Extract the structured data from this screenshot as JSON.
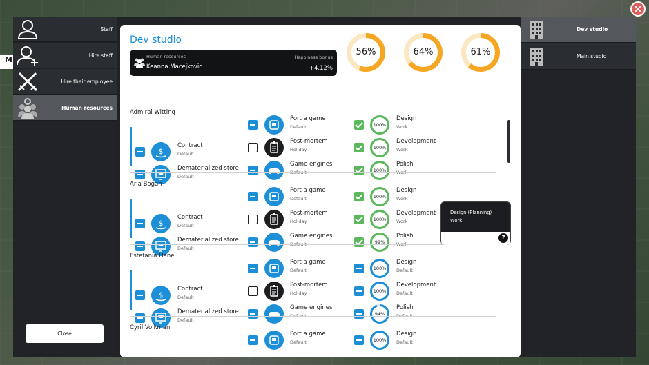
{
  "sidebar": {
    "items": [
      {
        "label": "Staff",
        "icon": "person-icon",
        "active": false
      },
      {
        "label": "Hire staff",
        "icon": "person-add-icon",
        "active": false
      },
      {
        "label": "Hire their employee",
        "icon": "crossed-swords-icon",
        "active": false
      },
      {
        "label": "Human resources",
        "icon": "group-gear-icon",
        "active": true
      }
    ],
    "close_label": "Close"
  },
  "studio": {
    "title": "Dev studio",
    "hr": {
      "label": "Human resources",
      "name": "Keanna Macejkovic",
      "bonus_label": "Happiness bonus",
      "bonus_value": "+4.12%"
    },
    "stats": [
      {
        "label": "56%",
        "value": 56
      },
      {
        "label": "64%",
        "value": 64
      },
      {
        "label": "61%",
        "value": 61
      }
    ]
  },
  "colors": {
    "accent": "#1c8fd6",
    "ring_orange": "#f5a623",
    "ring_track": "#fbe8c3",
    "check_green": "#5cb85c",
    "close_red": "#e35a5a"
  },
  "employees": [
    {
      "name": "Admiral Witting",
      "rows": [
        {
          "a": {
            "label": "",
            "sub": "",
            "cb": ""
          },
          "b": {
            "label": "Port a game",
            "sub": "Default",
            "cb": "minus",
            "icon": "console-icon"
          },
          "c": {
            "label": "Design",
            "sub": "Work",
            "cb": "check",
            "pct": "100%",
            "val": 100
          }
        },
        {
          "a": {
            "label": "Contract",
            "sub": "Default",
            "cb": "minus",
            "icon": "money-hand-icon"
          },
          "b": {
            "label": "Post-mortem",
            "sub": "Holiday",
            "cb": "empty",
            "icon": "clipboard-icon",
            "dark": true
          },
          "c": {
            "label": "Development",
            "sub": "Work",
            "cb": "check",
            "pct": "100%",
            "val": 100
          }
        },
        {
          "a": {
            "label": "Dematerialized store",
            "sub": "Default",
            "cb": "minus",
            "icon": "cart-screen-icon"
          },
          "b": {
            "label": "Game engines",
            "sub": "Default",
            "cb": "minus",
            "icon": "gamepad-icon"
          },
          "c": {
            "label": "Polish",
            "sub": "Work",
            "cb": "check",
            "pct": "100%",
            "val": 100
          }
        }
      ]
    },
    {
      "name": "Arla Bogan",
      "rows": [
        {
          "a": {
            "label": "",
            "sub": "",
            "cb": ""
          },
          "b": {
            "label": "Port a game",
            "sub": "Default",
            "cb": "minus",
            "icon": "console-icon"
          },
          "c": {
            "label": "Design",
            "sub": "Work",
            "cb": "check",
            "pct": "100%",
            "val": 100
          }
        },
        {
          "a": {
            "label": "Contract",
            "sub": "Default",
            "cb": "minus",
            "icon": "money-hand-icon"
          },
          "b": {
            "label": "Post-mortem",
            "sub": "Holiday",
            "cb": "empty",
            "icon": "clipboard-icon",
            "dark": true
          },
          "c": {
            "label": "Development",
            "sub": "Work",
            "cb": "check",
            "pct": "100%",
            "val": 100
          }
        },
        {
          "a": {
            "label": "Dematerialized store",
            "sub": "Default",
            "cb": "minus",
            "icon": "cart-screen-icon"
          },
          "b": {
            "label": "Game engines",
            "sub": "Default",
            "cb": "minus",
            "icon": "gamepad-icon"
          },
          "c": {
            "label": "Polish",
            "sub": "Work",
            "cb": "check",
            "pct": "99%",
            "val": 99
          }
        }
      ]
    },
    {
      "name": "Estefania Hane",
      "rows": [
        {
          "a": {
            "label": "",
            "sub": "",
            "cb": ""
          },
          "b": {
            "label": "Port a game",
            "sub": "Default",
            "cb": "minus",
            "icon": "console-icon"
          },
          "c": {
            "label": "Design",
            "sub": "Default",
            "cb": "minus",
            "pct": "100%",
            "val": 100
          }
        },
        {
          "a": {
            "label": "Contract",
            "sub": "Default",
            "cb": "minus",
            "icon": "money-hand-icon"
          },
          "b": {
            "label": "Post-mortem",
            "sub": "Holiday",
            "cb": "empty",
            "icon": "clipboard-icon",
            "dark": true
          },
          "c": {
            "label": "Development",
            "sub": "Default",
            "cb": "minus",
            "pct": "100%",
            "val": 100
          }
        },
        {
          "a": {
            "label": "Dematerialized store",
            "sub": "Default",
            "cb": "minus",
            "icon": "cart-screen-icon"
          },
          "b": {
            "label": "Game engines",
            "sub": "Default",
            "cb": "minus",
            "icon": "gamepad-icon"
          },
          "c": {
            "label": "Polish",
            "sub": "Default",
            "cb": "minus",
            "pct": "94%",
            "val": 94
          }
        }
      ]
    },
    {
      "name": "Cyril Volkman",
      "rows": [
        {
          "a": {
            "label": "",
            "sub": "",
            "cb": ""
          },
          "b": {
            "label": "Port a game",
            "sub": "Default",
            "cb": "minus",
            "icon": "console-icon"
          },
          "c": {
            "label": "Design",
            "sub": "Default",
            "cb": "minus",
            "pct": "100%",
            "val": 100
          }
        }
      ]
    }
  ],
  "tooltip": {
    "line1": "Design (Planning)",
    "line2": "Work",
    "help": "?"
  },
  "right_panel": {
    "items": [
      {
        "label": "Dev studio",
        "icon": "building-icon",
        "active": true
      },
      {
        "label": "Main studio",
        "icon": "building-icon",
        "active": false
      }
    ]
  },
  "peek_letter": "M"
}
